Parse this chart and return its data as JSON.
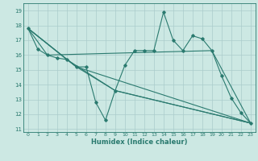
{
  "xlabel": "Humidex (Indice chaleur)",
  "xlim": [
    -0.5,
    23.5
  ],
  "ylim": [
    10.8,
    19.5
  ],
  "yticks": [
    11,
    12,
    13,
    14,
    15,
    16,
    17,
    18,
    19
  ],
  "xticks": [
    0,
    1,
    2,
    3,
    4,
    5,
    6,
    7,
    8,
    9,
    10,
    11,
    12,
    13,
    14,
    15,
    16,
    17,
    18,
    19,
    20,
    21,
    22,
    23
  ],
  "bg_color": "#cce8e3",
  "line_color": "#2a7a6f",
  "grid_color": "#aacccc",
  "series_main": {
    "x": [
      0,
      1,
      2,
      3,
      4,
      5,
      6,
      7,
      8,
      9,
      10,
      11,
      12,
      13,
      14,
      15,
      16,
      17,
      18,
      19,
      20,
      21,
      22,
      23
    ],
    "y": [
      17.8,
      16.4,
      16.0,
      15.8,
      15.7,
      15.2,
      15.2,
      12.8,
      11.6,
      13.6,
      15.3,
      16.3,
      16.3,
      16.3,
      18.9,
      17.0,
      16.3,
      17.3,
      17.1,
      16.3,
      14.6,
      13.1,
      12.1,
      11.4
    ]
  },
  "series_extra": [
    {
      "x": [
        0,
        2,
        19,
        23
      ],
      "y": [
        17.8,
        16.0,
        16.3,
        11.4
      ]
    },
    {
      "x": [
        0,
        4,
        9,
        23
      ],
      "y": [
        17.8,
        15.7,
        13.6,
        11.4
      ]
    },
    {
      "x": [
        0,
        5,
        9,
        23
      ],
      "y": [
        17.8,
        15.2,
        13.6,
        11.4
      ]
    },
    {
      "x": [
        0,
        5,
        23
      ],
      "y": [
        17.8,
        15.2,
        11.4
      ]
    }
  ]
}
